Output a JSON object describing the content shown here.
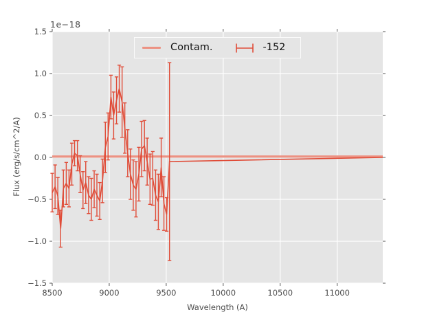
{
  "figure": {
    "offset_label": "1e−18",
    "xlabel": "Wavelength (A)",
    "ylabel": "Flux (erg/s/cm^2/A)",
    "background": "#ffffff",
    "plot_background": "#e5e5e5",
    "grid_color": "#ffffff",
    "tick_color": "#555555",
    "text_color": "#4d4d4d"
  },
  "legend": {
    "entries": [
      {
        "label": "Contam.",
        "glyph": "line",
        "color": "#ec9283"
      },
      {
        "label": "-152",
        "glyph": "errorbar",
        "color": "#e04c38"
      }
    ]
  },
  "chart_data": {
    "type": "line",
    "title": "",
    "xlabel": "Wavelength (A)",
    "ylabel": "Flux (erg/s/cm^2/A)",
    "y_unit_multiplier": "1e-18",
    "xlim": [
      8500,
      11400
    ],
    "ylim": [
      -1.5,
      1.5
    ],
    "xticks": [
      8500,
      9000,
      9500,
      10000,
      10500,
      11000
    ],
    "xtick_labels": [
      "8500",
      "9000",
      "9500",
      "10000",
      "10500",
      "11000"
    ],
    "yticks": [
      -1.5,
      -1.0,
      -0.5,
      0.0,
      0.5,
      1.0,
      1.5
    ],
    "ytick_labels": [
      "−1.5",
      "−1.0",
      "−0.5",
      "0.0",
      "0.5",
      "1.0",
      "1.5"
    ],
    "grid": true,
    "legend_position": "upper center",
    "series": [
      {
        "name": "Contam.",
        "style": "line",
        "color": "#ec9283",
        "linewidth": 3.2,
        "x": [
          8500,
          11400
        ],
        "y": [
          0.01,
          0.01
        ]
      },
      {
        "name": "-152",
        "style": "errorbar",
        "color": "#e04c38",
        "linewidth": 1.6,
        "points": [
          [
            8500,
            -0.42,
            0.23
          ],
          [
            8525,
            -0.35,
            0.26
          ],
          [
            8549,
            -0.46,
            0.22
          ],
          [
            8574,
            -0.85,
            0.22
          ],
          [
            8598,
            -0.37,
            0.22
          ],
          [
            8623,
            -0.31,
            0.25
          ],
          [
            8647,
            -0.37,
            0.22
          ],
          [
            8672,
            -0.08,
            0.25
          ],
          [
            8696,
            0.05,
            0.15
          ],
          [
            8721,
            0.02,
            0.18
          ],
          [
            8745,
            -0.2,
            0.22
          ],
          [
            8770,
            -0.39,
            0.22
          ],
          [
            8794,
            -0.3,
            0.25
          ],
          [
            8819,
            -0.45,
            0.22
          ],
          [
            8843,
            -0.5,
            0.25
          ],
          [
            8868,
            -0.38,
            0.22
          ],
          [
            8892,
            -0.45,
            0.25
          ],
          [
            8917,
            -0.52,
            0.22
          ],
          [
            8941,
            -0.28,
            0.26
          ],
          [
            8966,
            0.12,
            0.3
          ],
          [
            8990,
            0.25,
            0.28
          ],
          [
            9015,
            0.72,
            0.26
          ],
          [
            9039,
            0.5,
            0.28
          ],
          [
            9064,
            0.68,
            0.28
          ],
          [
            9088,
            0.82,
            0.28
          ],
          [
            9113,
            0.66,
            0.42
          ],
          [
            9137,
            0.35,
            0.3
          ],
          [
            9162,
            0.05,
            0.28
          ],
          [
            9186,
            -0.2,
            0.3
          ],
          [
            9211,
            -0.33,
            0.3
          ],
          [
            9235,
            -0.38,
            0.33
          ],
          [
            9260,
            -0.2,
            0.32
          ],
          [
            9284,
            0.1,
            0.33
          ],
          [
            9309,
            0.14,
            0.3
          ],
          [
            9333,
            -0.05,
            0.28
          ],
          [
            9358,
            -0.26,
            0.3
          ],
          [
            9382,
            -0.25,
            0.32
          ],
          [
            9407,
            -0.45,
            0.3
          ],
          [
            9431,
            -0.53,
            0.33
          ],
          [
            9456,
            -0.12,
            0.35
          ],
          [
            9480,
            -0.55,
            0.32
          ],
          [
            9504,
            -0.68,
            0.2
          ],
          [
            9529,
            -0.05,
            1.18
          ]
        ],
        "tail": {
          "to": 11400,
          "value": 0.0
        }
      }
    ]
  }
}
